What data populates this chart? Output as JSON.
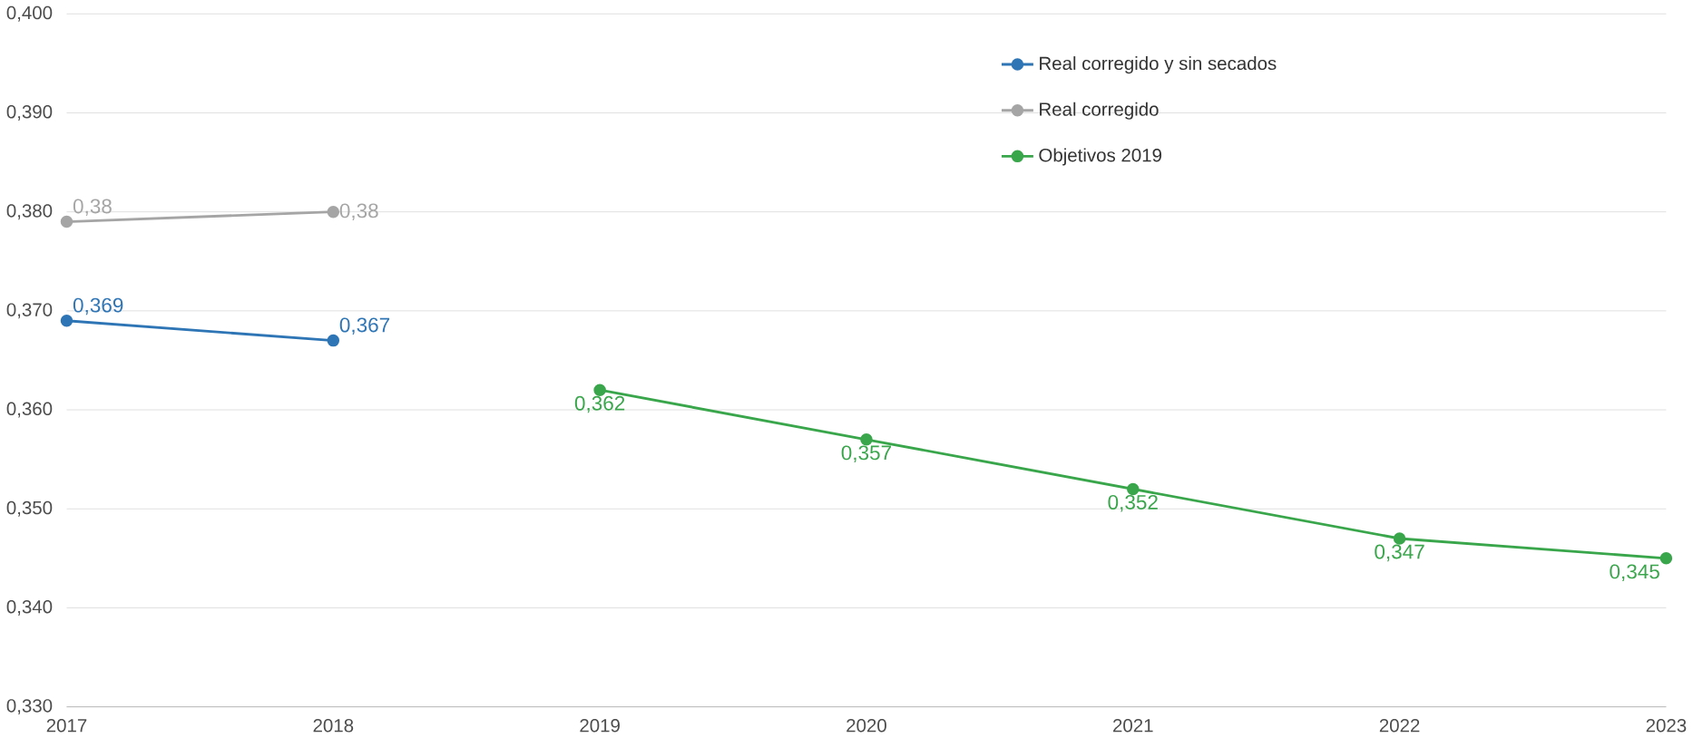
{
  "chart_data": {
    "type": "line",
    "x": [
      2017,
      2018,
      2019,
      2020,
      2021,
      2022,
      2023
    ],
    "series": [
      {
        "name": "Real corregido y sin secados",
        "color": "#2e75b6",
        "values": [
          0.369,
          0.367,
          null,
          null,
          null,
          null,
          null
        ],
        "value_labels": [
          "0,369",
          "0,367",
          null,
          null,
          null,
          null,
          null
        ]
      },
      {
        "name": "Real corregido",
        "color": "#a5a5a5",
        "values": [
          0.379,
          0.38,
          null,
          null,
          null,
          null,
          null
        ],
        "value_labels": [
          "0,38",
          "0,38",
          null,
          null,
          null,
          null,
          null
        ]
      },
      {
        "name": "Objetivos 2019",
        "color": "#3aa64c",
        "values": [
          null,
          null,
          0.362,
          0.357,
          0.352,
          0.347,
          0.345
        ],
        "value_labels": [
          null,
          null,
          "0,362",
          "0,357",
          "0,352",
          "0,347",
          "0,345"
        ]
      }
    ],
    "xlim": [
      2017,
      2023
    ],
    "xticks": [
      2017,
      2018,
      2019,
      2020,
      2021,
      2022,
      2023
    ],
    "ylim": [
      0.33,
      0.4
    ],
    "yticks": [
      {
        "value": 0.33,
        "label": "0,330"
      },
      {
        "value": 0.34,
        "label": "0,340"
      },
      {
        "value": 0.35,
        "label": "0,350"
      },
      {
        "value": 0.36,
        "label": "0,360"
      },
      {
        "value": 0.37,
        "label": "0,370"
      },
      {
        "value": 0.38,
        "label": "0,380"
      },
      {
        "value": 0.39,
        "label": "0,390"
      },
      {
        "value": 0.4,
        "label": "0,400"
      }
    ],
    "grid": "y",
    "legend": "top right",
    "marker": "circle",
    "line_style": "solid"
  }
}
